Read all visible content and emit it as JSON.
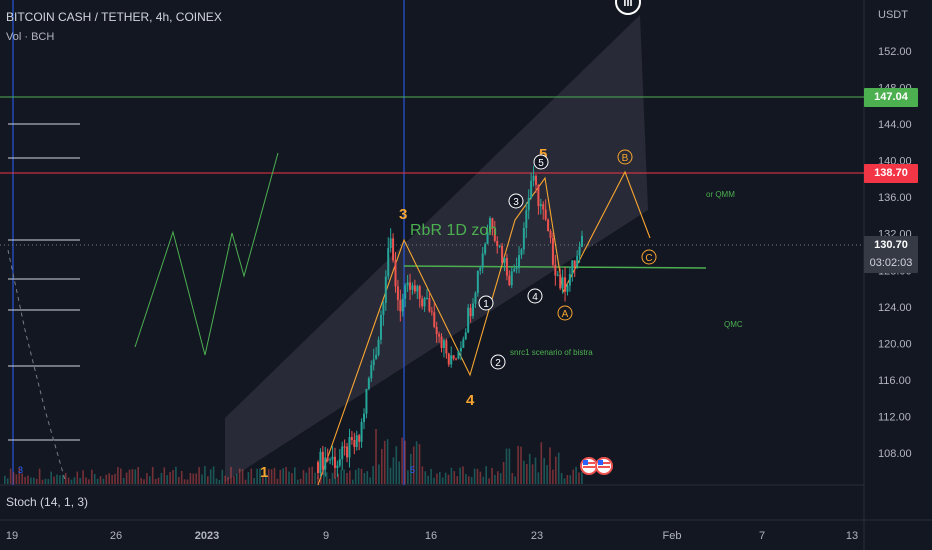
{
  "header": {
    "symbol": "BITCOIN CASH / TETHER, 4h, COINEX",
    "volume": "Vol · BCH",
    "indicator": "Stoch (14, 1, 3)"
  },
  "price_axis": {
    "currency": "USDT",
    "ticks": [
      "152.00",
      "148.00",
      "144.00",
      "140.00",
      "136.00",
      "132.00",
      "128.00",
      "124.00",
      "120.00",
      "116.00",
      "112.00",
      "108.00"
    ]
  },
  "time_axis": {
    "ticks": [
      "19",
      "26",
      "2023",
      "9",
      "16",
      "23",
      "Feb",
      "7",
      "13"
    ]
  },
  "price_tags": [
    {
      "label": "147.04",
      "bg": "#4caf50",
      "fg": "#ffffff"
    },
    {
      "label": "138.70",
      "bg": "#f23645",
      "fg": "#ffffff"
    },
    {
      "label": "130.70",
      "bg": "#363a45",
      "fg": "#ffffff"
    },
    {
      "label": "03:02:03",
      "bg": "#363a45",
      "fg": "#d1d4dc"
    }
  ],
  "annotations": {
    "zone": "RbR 1D zon",
    "scenario": "snrc1 scenario of bistra",
    "qmm": "or QMM",
    "qmc": "QMC",
    "wave1": "1",
    "wave3": "3",
    "wave4": "4",
    "wave5": "5",
    "circ1": "1",
    "circ2": "2",
    "circ3": "3",
    "circ4": "4",
    "circ5": "5",
    "circA": "A",
    "circB": "B",
    "circC": "C",
    "top_roman": "iii",
    "bottom_3": "3",
    "bottom_5": "5"
  },
  "colors": {
    "background": "#131722",
    "up": "#26a69a",
    "down": "#ef5350",
    "wave": "#f7a531",
    "green_line": "#4caf50",
    "red_line": "#f23645",
    "channel": "#2a2e39"
  },
  "chart_data": {
    "type": "candlestick",
    "title": "BITCOIN CASH / TETHER, 4h, COINEX",
    "ylabel": "USDT",
    "ylim": [
      105,
      157
    ],
    "x_ticks": [
      "19",
      "26",
      "2023",
      "9",
      "16",
      "23",
      "Feb",
      "7",
      "13"
    ],
    "horizontal_levels": [
      147.04,
      138.7
    ],
    "last_price": 130.7,
    "candles_close_path": [
      {
        "date": "Jan 5",
        "close": 107
      },
      {
        "date": "Jan 8",
        "close": 107.5
      },
      {
        "date": "Jan 10",
        "close": 107
      },
      {
        "date": "Jan 11",
        "close": 108.5
      },
      {
        "date": "Jan 12",
        "close": 109
      },
      {
        "date": "Jan 13",
        "close": 116
      },
      {
        "date": "Jan 13",
        "close": 121
      },
      {
        "date": "Jan 14",
        "close": 131.5
      },
      {
        "date": "Jan 14",
        "close": 124
      },
      {
        "date": "Jan 15",
        "close": 126
      },
      {
        "date": "Jan 16",
        "close": 125
      },
      {
        "date": "Jan 17",
        "close": 124
      },
      {
        "date": "Jan 18",
        "close": 121
      },
      {
        "date": "Jan 19",
        "close": 117.5
      },
      {
        "date": "Jan 20",
        "close": 120
      },
      {
        "date": "Jan 21",
        "close": 124
      },
      {
        "date": "Jan 22",
        "close": 129
      },
      {
        "date": "Jan 22",
        "close": 134
      },
      {
        "date": "Jan 23",
        "close": 130
      },
      {
        "date": "Jan 23",
        "close": 127
      },
      {
        "date": "Jan 24",
        "close": 131
      },
      {
        "date": "Jan 24",
        "close": 138
      },
      {
        "date": "Jan 25",
        "close": 135
      },
      {
        "date": "Jan 25",
        "close": 130
      },
      {
        "date": "Jan 26",
        "close": 126
      },
      {
        "date": "Jan 27",
        "close": 128
      },
      {
        "date": "Jan 27",
        "close": 130.7
      }
    ]
  }
}
